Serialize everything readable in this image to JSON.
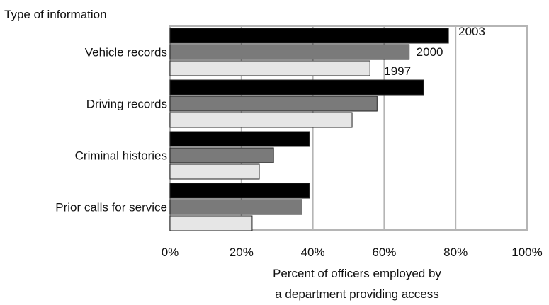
{
  "chart_data": {
    "type": "bar",
    "orientation": "horizontal",
    "title": "Type of information",
    "xlabel_lines": [
      "Percent of officers employed by",
      "a department providing access"
    ],
    "ylabel": "",
    "xlim": [
      0,
      100
    ],
    "x_ticks": [
      "0%",
      "20%",
      "40%",
      "60%",
      "80%",
      "100%"
    ],
    "grid": true,
    "legend": "inline labels on first category",
    "categories": [
      "Vehicle records",
      "Driving records",
      "Criminal histories",
      "Prior calls for service"
    ],
    "series": [
      {
        "name": "2003",
        "color": "#000000",
        "values": [
          78,
          71,
          39,
          39
        ]
      },
      {
        "name": "2000",
        "color": "#7a7a7a",
        "values": [
          67,
          58,
          29,
          37
        ]
      },
      {
        "name": "1997",
        "color": "#e6e6e6",
        "values": [
          56,
          51,
          25,
          23
        ]
      }
    ]
  }
}
